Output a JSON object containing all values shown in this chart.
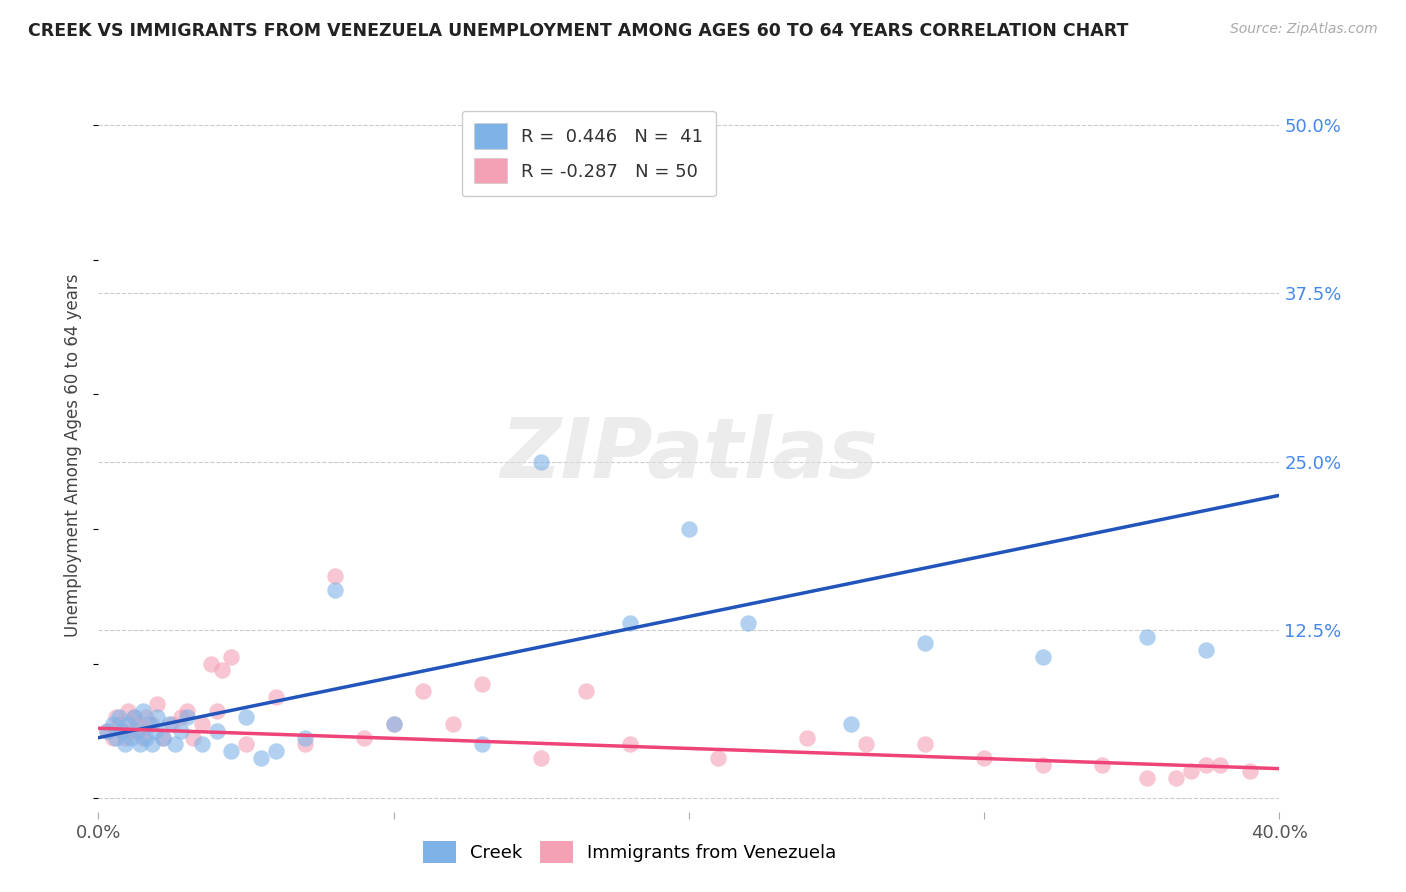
{
  "title": "CREEK VS IMMIGRANTS FROM VENEZUELA UNEMPLOYMENT AMONG AGES 60 TO 64 YEARS CORRELATION CHART",
  "source": "Source: ZipAtlas.com",
  "ylabel": "Unemployment Among Ages 60 to 64 years",
  "xlim": [
    0.0,
    0.4
  ],
  "ylim": [
    -0.01,
    0.52
  ],
  "xticks": [
    0.0,
    0.1,
    0.2,
    0.3,
    0.4
  ],
  "xticklabels": [
    "0.0%",
    "",
    "",
    "",
    "40.0%"
  ],
  "yticks": [
    0.0,
    0.125,
    0.25,
    0.375,
    0.5
  ],
  "yticklabels": [
    "",
    "12.5%",
    "25.0%",
    "37.5%",
    "50.0%"
  ],
  "background_color": "#ffffff",
  "grid_color": "#cccccc",
  "creek_color": "#7fb3e8",
  "venezuela_color": "#f4a0b5",
  "creek_R": 0.446,
  "creek_N": 41,
  "venezuela_R": -0.287,
  "venezuela_N": 50,
  "creek_line_color": "#2255bb",
  "venezuela_line_color": "#ee4477",
  "legend_label_creek": "Creek",
  "legend_label_venezuela": "Immigrants from Venezuela",
  "creek_line_x0": 0.0,
  "creek_line_y0": 0.045,
  "creek_line_x1": 0.4,
  "creek_line_y1": 0.225,
  "venezuela_line_x0": 0.0,
  "venezuela_line_y0": 0.052,
  "venezuela_line_x1": 0.4,
  "venezuela_line_y1": 0.022,
  "creek_x": [
    0.003,
    0.005,
    0.006,
    0.007,
    0.008,
    0.009,
    0.01,
    0.011,
    0.012,
    0.013,
    0.014,
    0.015,
    0.016,
    0.017,
    0.018,
    0.019,
    0.02,
    0.022,
    0.024,
    0.026,
    0.028,
    0.03,
    0.035,
    0.04,
    0.045,
    0.05,
    0.055,
    0.06,
    0.07,
    0.08,
    0.1,
    0.13,
    0.15,
    0.18,
    0.2,
    0.22,
    0.255,
    0.28,
    0.32,
    0.355,
    0.375
  ],
  "creek_y": [
    0.05,
    0.055,
    0.045,
    0.06,
    0.05,
    0.04,
    0.055,
    0.045,
    0.06,
    0.05,
    0.04,
    0.065,
    0.045,
    0.055,
    0.04,
    0.05,
    0.06,
    0.045,
    0.055,
    0.04,
    0.05,
    0.06,
    0.04,
    0.05,
    0.035,
    0.06,
    0.03,
    0.035,
    0.045,
    0.155,
    0.055,
    0.04,
    0.25,
    0.13,
    0.2,
    0.13,
    0.055,
    0.115,
    0.105,
    0.12,
    0.11
  ],
  "venezuela_x": [
    0.003,
    0.005,
    0.006,
    0.007,
    0.008,
    0.009,
    0.01,
    0.011,
    0.012,
    0.013,
    0.014,
    0.015,
    0.016,
    0.018,
    0.02,
    0.022,
    0.025,
    0.028,
    0.03,
    0.032,
    0.035,
    0.038,
    0.04,
    0.042,
    0.045,
    0.05,
    0.06,
    0.07,
    0.08,
    0.09,
    0.1,
    0.11,
    0.12,
    0.13,
    0.15,
    0.165,
    0.18,
    0.21,
    0.24,
    0.26,
    0.28,
    0.3,
    0.32,
    0.34,
    0.355,
    0.365,
    0.37,
    0.375,
    0.38,
    0.39
  ],
  "venezuela_y": [
    0.05,
    0.045,
    0.06,
    0.055,
    0.05,
    0.045,
    0.065,
    0.05,
    0.06,
    0.055,
    0.05,
    0.045,
    0.06,
    0.055,
    0.07,
    0.045,
    0.055,
    0.06,
    0.065,
    0.045,
    0.055,
    0.1,
    0.065,
    0.095,
    0.105,
    0.04,
    0.075,
    0.04,
    0.165,
    0.045,
    0.055,
    0.08,
    0.055,
    0.085,
    0.03,
    0.08,
    0.04,
    0.03,
    0.045,
    0.04,
    0.04,
    0.03,
    0.025,
    0.025,
    0.015,
    0.015,
    0.02,
    0.025,
    0.025,
    0.02
  ]
}
